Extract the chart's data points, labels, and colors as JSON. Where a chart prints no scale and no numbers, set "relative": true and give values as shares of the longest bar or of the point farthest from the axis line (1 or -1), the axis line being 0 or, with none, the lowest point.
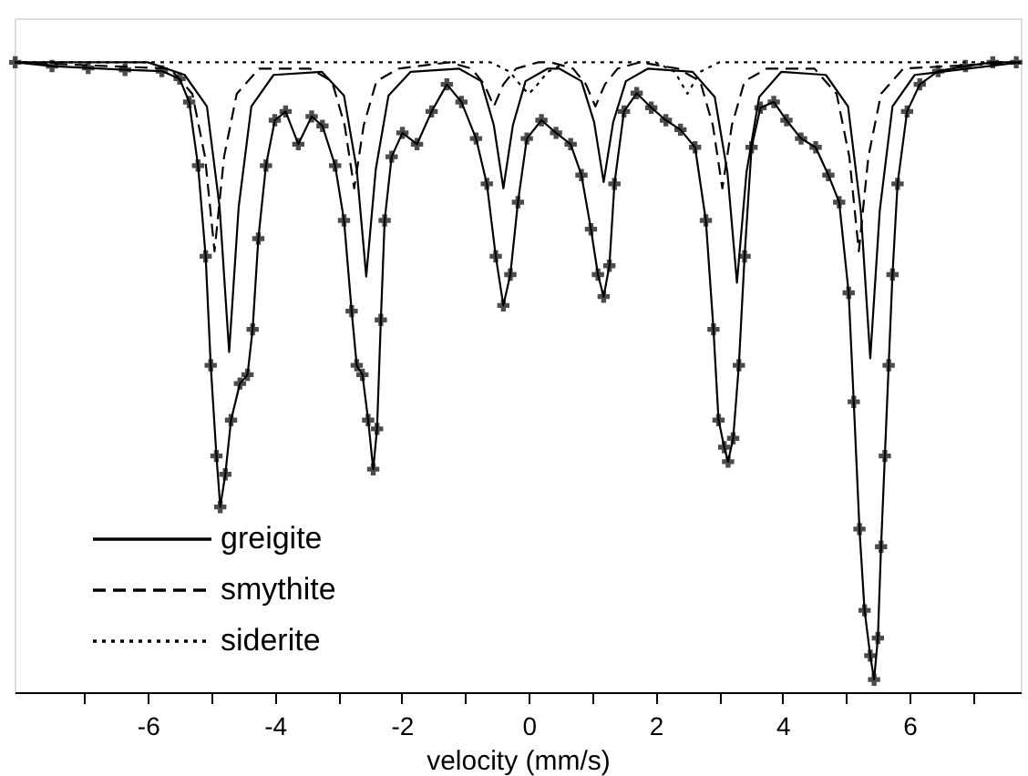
{
  "chart_data": {
    "type": "line",
    "relative": true,
    "xlabel": "velocity (mm/s)",
    "xlim": [
      -8.1,
      7.75
    ],
    "xticks": [
      {
        "value": -7,
        "label": null
      },
      -6,
      {
        "value": -5,
        "label": null
      },
      -4,
      {
        "value": -3,
        "label": null
      },
      -2,
      {
        "value": -1,
        "label": null
      },
      0,
      {
        "value": 1,
        "label": null
      },
      2,
      {
        "value": 3,
        "label": null
      },
      4,
      {
        "value": 5,
        "label": null
      },
      6,
      {
        "value": 7,
        "label": null
      }
    ],
    "tick_labels": "x",
    "legend": "bottom left",
    "series": [
      {
        "color": "#000000",
        "marker": "cross",
        "line_style": "solid",
        "x": [
          -8.09,
          -7.51,
          -6.94,
          -6.36,
          -5.78,
          -5.5,
          -5.35,
          -5.21,
          -5.09,
          -5.01,
          -4.92,
          -4.86,
          -4.78,
          -4.69,
          -4.55,
          -4.43,
          -4.35,
          -4.26,
          -4.14,
          -4.0,
          -3.83,
          -3.63,
          -3.42,
          -3.25,
          -3.05,
          -2.91,
          -2.79,
          -2.71,
          -2.62,
          -2.53,
          -2.45,
          -2.39,
          -2.33,
          -2.27,
          -2.16,
          -1.99,
          -1.76,
          -1.53,
          -1.29,
          -1.06,
          -0.83,
          -0.66,
          -0.52,
          -0.4,
          -0.29,
          -0.17,
          -0.03,
          0.2,
          0.43,
          0.66,
          0.83,
          0.98,
          1.09,
          1.18,
          1.27,
          1.35,
          1.5,
          1.7,
          1.93,
          2.16,
          2.39,
          2.62,
          2.79,
          2.91,
          2.99,
          3.08,
          3.14,
          3.22,
          3.31,
          3.4,
          3.51,
          3.65,
          3.86,
          4.06,
          4.29,
          4.52,
          4.72,
          4.89,
          5.04,
          5.12,
          5.21,
          5.29,
          5.38,
          5.44,
          5.5,
          5.55,
          5.61,
          5.67,
          5.73,
          5.81,
          5.96,
          6.16,
          6.45,
          6.88,
          7.31,
          7.68
        ],
        "values": [
          1.0,
          0.994,
          0.991,
          0.988,
          0.986,
          0.974,
          0.937,
          0.836,
          0.692,
          0.519,
          0.375,
          0.294,
          0.346,
          0.432,
          0.49,
          0.504,
          0.576,
          0.72,
          0.836,
          0.908,
          0.922,
          0.87,
          0.914,
          0.899,
          0.836,
          0.749,
          0.605,
          0.519,
          0.504,
          0.432,
          0.354,
          0.418,
          0.591,
          0.749,
          0.85,
          0.888,
          0.87,
          0.922,
          0.965,
          0.937,
          0.879,
          0.807,
          0.692,
          0.614,
          0.663,
          0.778,
          0.879,
          0.908,
          0.888,
          0.87,
          0.821,
          0.735,
          0.663,
          0.628,
          0.677,
          0.807,
          0.922,
          0.951,
          0.928,
          0.908,
          0.893,
          0.865,
          0.749,
          0.576,
          0.432,
          0.389,
          0.366,
          0.403,
          0.519,
          0.692,
          0.865,
          0.928,
          0.937,
          0.908,
          0.879,
          0.865,
          0.821,
          0.778,
          0.634,
          0.461,
          0.259,
          0.13,
          0.058,
          0.02,
          0.086,
          0.231,
          0.375,
          0.519,
          0.663,
          0.807,
          0.922,
          0.965,
          0.986,
          0.994,
          1.0,
          1.0
        ]
      },
      {
        "name": "greigite",
        "color": "#000000",
        "line_style": "solid",
        "x": [
          -8.1,
          -6.0,
          -5.42,
          -5.07,
          -4.87,
          -4.72,
          -4.57,
          -4.37,
          -4.02,
          -3.26,
          -2.91,
          -2.71,
          -2.56,
          -2.41,
          -2.21,
          -1.86,
          -1.1,
          -0.75,
          -0.55,
          -0.4,
          -0.25,
          -0.05,
          0.3,
          0.48,
          0.83,
          1.03,
          1.18,
          1.33,
          1.53,
          1.88,
          2.58,
          2.93,
          3.13,
          3.28,
          3.43,
          3.63,
          3.98,
          4.68,
          5.03,
          5.23,
          5.38,
          5.53,
          5.73,
          6.08,
          7.75
        ],
        "values": [
          1.0,
          1.0,
          0.98,
          0.93,
          0.77,
          0.54,
          0.77,
          0.93,
          0.98,
          0.985,
          0.947,
          0.83,
          0.66,
          0.83,
          0.947,
          0.985,
          0.99,
          0.97,
          0.9,
          0.8,
          0.9,
          0.97,
          0.99,
          0.99,
          0.97,
          0.905,
          0.81,
          0.905,
          0.97,
          0.99,
          0.985,
          0.945,
          0.825,
          0.65,
          0.825,
          0.945,
          0.985,
          0.98,
          0.93,
          0.765,
          0.53,
          0.765,
          0.93,
          0.98,
          1.0
        ]
      },
      {
        "name": "smythite",
        "color": "#000000",
        "line_style": "dashed",
        "x": [
          -8.1,
          -5.65,
          -5.3,
          -5.1,
          -4.95,
          -4.8,
          -4.6,
          -4.25,
          -3.45,
          -3.1,
          -2.9,
          -2.75,
          -2.6,
          -2.4,
          -2.05,
          -1.25,
          -0.9,
          -0.7,
          -0.55,
          -0.4,
          -0.2,
          0.15,
          0.35,
          0.7,
          0.9,
          1.05,
          1.2,
          1.4,
          1.75,
          2.35,
          2.7,
          2.9,
          3.05,
          3.2,
          3.4,
          3.75,
          4.5,
          4.85,
          5.05,
          5.2,
          5.35,
          5.55,
          5.9,
          7.75
        ],
        "values": [
          1.0,
          0.99,
          0.95,
          0.85,
          0.7,
          0.85,
          0.95,
          0.99,
          0.99,
          0.97,
          0.9,
          0.8,
          0.9,
          0.97,
          0.99,
          1.0,
          0.99,
          0.965,
          0.93,
          0.965,
          0.99,
          1.0,
          1.0,
          0.99,
          0.965,
          0.93,
          0.965,
          0.99,
          1.0,
          0.99,
          0.97,
          0.9,
          0.8,
          0.9,
          0.97,
          0.99,
          0.99,
          0.95,
          0.85,
          0.7,
          0.85,
          0.95,
          0.99,
          1.0
        ]
      },
      {
        "name": "siderite",
        "color": "#000000",
        "line_style": "dotted",
        "x": [
          -8.1,
          -0.6,
          -0.3,
          -0.1,
          0.0,
          0.1,
          0.3,
          0.6,
          2.0,
          2.3,
          2.5,
          2.7,
          3.0,
          7.75
        ],
        "values": [
          1.0,
          1.0,
          0.985,
          0.96,
          0.95,
          0.96,
          0.985,
          1.0,
          1.0,
          0.985,
          0.95,
          0.985,
          1.0,
          1.0
        ]
      }
    ]
  }
}
